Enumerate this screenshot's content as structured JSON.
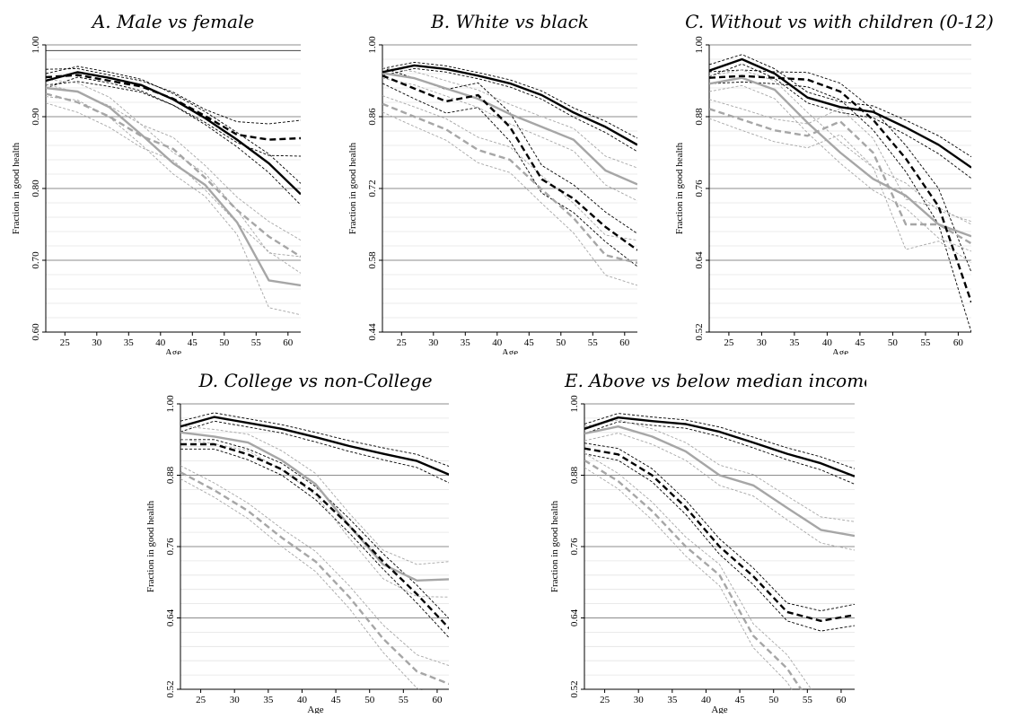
{
  "chart_data": [
    {
      "type": "line",
      "title": "A. Male vs female",
      "xlabel": "Age",
      "ylabel": "Fraction in good health",
      "xlim": [
        22,
        62
      ],
      "ylim": [
        0.6,
        1.0
      ],
      "xticks": [
        25,
        30,
        35,
        40,
        45,
        50,
        55,
        60
      ],
      "yticks": [
        0.6,
        0.7,
        0.8,
        0.9,
        1.0
      ],
      "ytick_labels": [
        "0.60",
        "0.70",
        "0.80",
        "0.90",
        "1.00"
      ],
      "x": [
        22,
        27,
        32,
        37,
        42,
        47,
        52,
        57,
        62
      ],
      "series": [
        {
          "values": [
            0.95,
            0.962,
            0.954,
            0.944,
            0.924,
            0.898,
            0.868,
            0.835,
            0.792
          ],
          "style": "solid",
          "color": "#000000",
          "width": 2.4,
          "lower": [
            0.94,
            0.955,
            0.947,
            0.936,
            0.916,
            0.889,
            0.858,
            0.822,
            0.777
          ],
          "upper": [
            0.96,
            0.97,
            0.962,
            0.952,
            0.932,
            0.907,
            0.878,
            0.848,
            0.807
          ]
        },
        {
          "values": [
            0.955,
            0.958,
            0.95,
            0.942,
            0.925,
            0.901,
            0.875,
            0.868,
            0.87
          ],
          "style": "dashed",
          "color": "#000000",
          "width": 2.4,
          "lower": [
            0.944,
            0.949,
            0.942,
            0.934,
            0.916,
            0.892,
            0.864,
            0.846,
            0.845
          ],
          "upper": [
            0.966,
            0.967,
            0.958,
            0.95,
            0.934,
            0.91,
            0.893,
            0.89,
            0.895
          ]
        },
        {
          "values": [
            0.94,
            0.935,
            0.913,
            0.875,
            0.835,
            0.805,
            0.753,
            0.672,
            0.665
          ],
          "style": "solid",
          "color": "#a6a6a6",
          "width": 2.4,
          "lower": [
            0.928,
            0.923,
            0.899,
            0.861,
            0.82,
            0.789,
            0.736,
            0.634,
            0.624
          ],
          "upper": [
            0.952,
            0.947,
            0.927,
            0.889,
            0.85,
            0.821,
            0.77,
            0.71,
            0.705
          ]
        },
        {
          "values": [
            0.932,
            0.92,
            0.9,
            0.873,
            0.855,
            0.815,
            0.77,
            0.733,
            0.705
          ],
          "style": "dashed",
          "color": "#a6a6a6",
          "width": 2.4,
          "lower": [
            0.919,
            0.906,
            0.885,
            0.857,
            0.839,
            0.798,
            0.752,
            0.712,
            0.682
          ],
          "upper": [
            0.945,
            0.934,
            0.915,
            0.889,
            0.871,
            0.832,
            0.788,
            0.754,
            0.728
          ]
        }
      ]
    },
    {
      "type": "line",
      "title": "B. White vs black",
      "xlabel": "Age",
      "ylabel": "Fraction in good health",
      "xlim": [
        22,
        62
      ],
      "ylim": [
        0.44,
        1.0
      ],
      "xticks": [
        25,
        30,
        35,
        40,
        45,
        50,
        55,
        60
      ],
      "yticks": [
        0.44,
        0.58,
        0.72,
        0.86,
        1.0
      ],
      "ytick_labels": [
        "0.44",
        "0.58",
        "0.72",
        "0.86",
        "1.00"
      ],
      "x": [
        22,
        27,
        32,
        37,
        42,
        47,
        52,
        57,
        62
      ],
      "series": [
        {
          "values": [
            0.947,
            0.96,
            0.953,
            0.94,
            0.925,
            0.902,
            0.868,
            0.84,
            0.805
          ],
          "style": "solid",
          "color": "#000000",
          "width": 2.4,
          "lower": [
            0.94,
            0.954,
            0.947,
            0.934,
            0.918,
            0.894,
            0.859,
            0.829,
            0.792
          ],
          "upper": [
            0.954,
            0.966,
            0.959,
            0.946,
            0.932,
            0.91,
            0.877,
            0.851,
            0.818
          ]
        },
        {
          "values": [
            0.94,
            0.915,
            0.89,
            0.902,
            0.84,
            0.738,
            0.7,
            0.645,
            0.6
          ],
          "style": "dashed",
          "color": "#000000",
          "width": 2.4,
          "lower": [
            0.925,
            0.895,
            0.867,
            0.878,
            0.812,
            0.711,
            0.673,
            0.616,
            0.568
          ],
          "upper": [
            0.955,
            0.935,
            0.913,
            0.926,
            0.868,
            0.765,
            0.727,
            0.674,
            0.632
          ]
        },
        {
          "values": [
            0.945,
            0.935,
            0.915,
            0.895,
            0.865,
            0.84,
            0.815,
            0.755,
            0.728
          ],
          "style": "solid",
          "color": "#a6a6a6",
          "width": 2.4,
          "lower": [
            0.935,
            0.922,
            0.9,
            0.878,
            0.846,
            0.82,
            0.793,
            0.727,
            0.696
          ],
          "upper": [
            0.955,
            0.948,
            0.93,
            0.912,
            0.884,
            0.86,
            0.837,
            0.783,
            0.76
          ]
        },
        {
          "values": [
            0.885,
            0.86,
            0.835,
            0.795,
            0.776,
            0.718,
            0.662,
            0.59,
            0.575
          ],
          "style": "dashed",
          "color": "#a6a6a6",
          "width": 2.4,
          "lower": [
            0.869,
            0.841,
            0.814,
            0.77,
            0.751,
            0.691,
            0.633,
            0.551,
            0.531
          ],
          "upper": [
            0.901,
            0.879,
            0.856,
            0.82,
            0.801,
            0.745,
            0.691,
            0.629,
            0.619
          ]
        }
      ]
    },
    {
      "type": "line",
      "title": "C. Without vs with children (0-12)",
      "xlabel": "Age",
      "ylabel": "Fraction in good health",
      "xlim": [
        22,
        62
      ],
      "ylim": [
        0.52,
        1.0
      ],
      "xticks": [
        25,
        30,
        35,
        40,
        45,
        50,
        55,
        60
      ],
      "yticks": [
        0.52,
        0.64,
        0.76,
        0.88,
        1.0
      ],
      "ytick_labels": [
        "0.52",
        "0.64",
        "0.76",
        "0.88",
        "1.00"
      ],
      "x": [
        22,
        27,
        32,
        37,
        42,
        47,
        52,
        57,
        62
      ],
      "series": [
        {
          "values": [
            0.957,
            0.976,
            0.952,
            0.912,
            0.896,
            0.888,
            0.862,
            0.833,
            0.795
          ],
          "style": "solid",
          "color": "#000000",
          "width": 2.4,
          "lower": [
            0.947,
            0.968,
            0.944,
            0.903,
            0.887,
            0.878,
            0.85,
            0.818,
            0.777
          ],
          "upper": [
            0.967,
            0.984,
            0.96,
            0.921,
            0.905,
            0.898,
            0.874,
            0.848,
            0.813
          ]
        },
        {
          "values": [
            0.945,
            0.948,
            0.945,
            0.942,
            0.922,
            0.875,
            0.81,
            0.73,
            0.57
          ],
          "style": "dashed",
          "color": "#000000",
          "width": 2.4,
          "lower": [
            0.935,
            0.938,
            0.935,
            0.93,
            0.908,
            0.858,
            0.788,
            0.7,
            0.52
          ],
          "upper": [
            0.955,
            0.958,
            0.955,
            0.954,
            0.936,
            0.892,
            0.832,
            0.76,
            0.62
          ]
        },
        {
          "values": [
            0.935,
            0.945,
            0.925,
            0.87,
            0.82,
            0.776,
            0.748,
            0.7,
            0.68
          ],
          "style": "solid",
          "color": "#a6a6a6",
          "width": 2.4,
          "lower": [
            0.922,
            0.932,
            0.91,
            0.853,
            0.802,
            0.757,
            0.727,
            0.677,
            0.655
          ],
          "upper": [
            0.948,
            0.958,
            0.94,
            0.887,
            0.838,
            0.795,
            0.769,
            0.723,
            0.705
          ]
        },
        {
          "values": [
            0.893,
            0.875,
            0.857,
            0.848,
            0.872,
            0.82,
            0.7,
            0.7,
            0.668
          ],
          "style": "dashed",
          "color": "#a6a6a6",
          "width": 2.4,
          "lower": [
            0.877,
            0.857,
            0.838,
            0.828,
            0.85,
            0.796,
            0.658,
            0.672,
            0.636
          ],
          "upper": [
            0.909,
            0.893,
            0.876,
            0.868,
            0.894,
            0.844,
            0.742,
            0.728,
            0.7
          ]
        }
      ]
    },
    {
      "type": "line",
      "title": "D. College vs non-College",
      "xlabel": "Age",
      "ylabel": "Fraction in good health",
      "xlim": [
        22,
        62
      ],
      "ylim": [
        0.52,
        1.0
      ],
      "xticks": [
        25,
        30,
        35,
        40,
        45,
        50,
        55,
        60
      ],
      "yticks": [
        0.52,
        0.64,
        0.76,
        0.88,
        1.0
      ],
      "ytick_labels": [
        "0.52",
        "0.64",
        "0.76",
        "0.88",
        "1.00"
      ],
      "x": [
        22,
        27,
        32,
        37,
        42,
        47,
        52,
        57,
        62
      ],
      "series": [
        {
          "values": [
            0.962,
            0.978,
            0.968,
            0.958,
            0.944,
            0.929,
            0.916,
            0.904,
            0.88
          ],
          "style": "solid",
          "color": "#000000",
          "width": 2.4,
          "lower": [
            0.953,
            0.971,
            0.961,
            0.951,
            0.936,
            0.92,
            0.906,
            0.893,
            0.866
          ],
          "upper": [
            0.971,
            0.985,
            0.975,
            0.965,
            0.952,
            0.938,
            0.926,
            0.915,
            0.894
          ]
        },
        {
          "values": [
            0.932,
            0.932,
            0.915,
            0.89,
            0.85,
            0.795,
            0.735,
            0.68,
            0.62
          ],
          "style": "dashed",
          "color": "#000000",
          "width": 2.4,
          "lower": [
            0.924,
            0.924,
            0.906,
            0.88,
            0.839,
            0.783,
            0.722,
            0.665,
            0.604
          ],
          "upper": [
            0.94,
            0.94,
            0.924,
            0.9,
            0.861,
            0.807,
            0.748,
            0.695,
            0.636
          ]
        },
        {
          "values": [
            0.952,
            0.945,
            0.935,
            0.905,
            0.865,
            0.795,
            0.73,
            0.703,
            0.705
          ],
          "style": "solid",
          "color": "#a6a6a6",
          "width": 2.4,
          "lower": [
            0.941,
            0.933,
            0.921,
            0.889,
            0.847,
            0.774,
            0.706,
            0.676,
            0.675
          ],
          "upper": [
            0.963,
            0.957,
            0.949,
            0.921,
            0.883,
            0.816,
            0.754,
            0.73,
            0.735
          ]
        },
        {
          "values": [
            0.885,
            0.855,
            0.82,
            0.775,
            0.735,
            0.675,
            0.605,
            0.55,
            0.528
          ],
          "style": "dashed",
          "color": "#a6a6a6",
          "width": 2.4,
          "lower": [
            0.874,
            0.843,
            0.807,
            0.76,
            0.718,
            0.656,
            0.582,
            0.522,
            0.497
          ],
          "upper": [
            0.896,
            0.867,
            0.833,
            0.79,
            0.752,
            0.694,
            0.628,
            0.578,
            0.559
          ]
        }
      ]
    },
    {
      "type": "line",
      "title": "E. Above vs below median income",
      "xlabel": "Age",
      "ylabel": "Fraction in good health",
      "xlim": [
        22,
        62
      ],
      "ylim": [
        0.52,
        1.0
      ],
      "xticks": [
        25,
        30,
        35,
        40,
        45,
        50,
        55,
        60
      ],
      "yticks": [
        0.52,
        0.64,
        0.76,
        0.88,
        1.0
      ],
      "ytick_labels": [
        "0.52",
        "0.64",
        "0.76",
        "0.88",
        "1.00"
      ],
      "x": [
        22,
        27,
        32,
        37,
        42,
        47,
        52,
        57,
        62
      ],
      "series": [
        {
          "values": [
            0.958,
            0.977,
            0.971,
            0.966,
            0.953,
            0.935,
            0.916,
            0.9,
            0.878
          ],
          "style": "solid",
          "color": "#000000",
          "width": 2.4,
          "lower": [
            0.95,
            0.97,
            0.964,
            0.959,
            0.945,
            0.926,
            0.906,
            0.889,
            0.865
          ],
          "upper": [
            0.966,
            0.984,
            0.978,
            0.973,
            0.961,
            0.944,
            0.926,
            0.911,
            0.891
          ]
        },
        {
          "values": [
            0.925,
            0.915,
            0.88,
            0.826,
            0.76,
            0.71,
            0.65,
            0.635,
            0.645
          ],
          "style": "dashed",
          "color": "#000000",
          "width": 2.4,
          "lower": [
            0.916,
            0.905,
            0.869,
            0.814,
            0.747,
            0.696,
            0.635,
            0.618,
            0.627
          ],
          "upper": [
            0.934,
            0.925,
            0.891,
            0.838,
            0.773,
            0.724,
            0.665,
            0.652,
            0.663
          ]
        },
        {
          "values": [
            0.95,
            0.962,
            0.945,
            0.92,
            0.88,
            0.863,
            0.825,
            0.788,
            0.778
          ],
          "style": "solid",
          "color": "#a6a6a6",
          "width": 2.4,
          "lower": [
            0.938,
            0.951,
            0.932,
            0.905,
            0.863,
            0.845,
            0.805,
            0.766,
            0.754
          ],
          "upper": [
            0.962,
            0.973,
            0.958,
            0.935,
            0.897,
            0.881,
            0.845,
            0.81,
            0.802
          ]
        },
        {
          "values": [
            0.905,
            0.87,
            0.82,
            0.76,
            0.712,
            0.61,
            0.555,
            0.47,
            0.49
          ],
          "style": "dashed",
          "color": "#a6a6a6",
          "width": 2.4,
          "lower": [
            0.893,
            0.857,
            0.805,
            0.744,
            0.694,
            0.59,
            0.532,
            0.443,
            0.462
          ],
          "upper": [
            0.917,
            0.883,
            0.835,
            0.776,
            0.73,
            0.63,
            0.578,
            0.497,
            0.518
          ]
        }
      ]
    }
  ]
}
